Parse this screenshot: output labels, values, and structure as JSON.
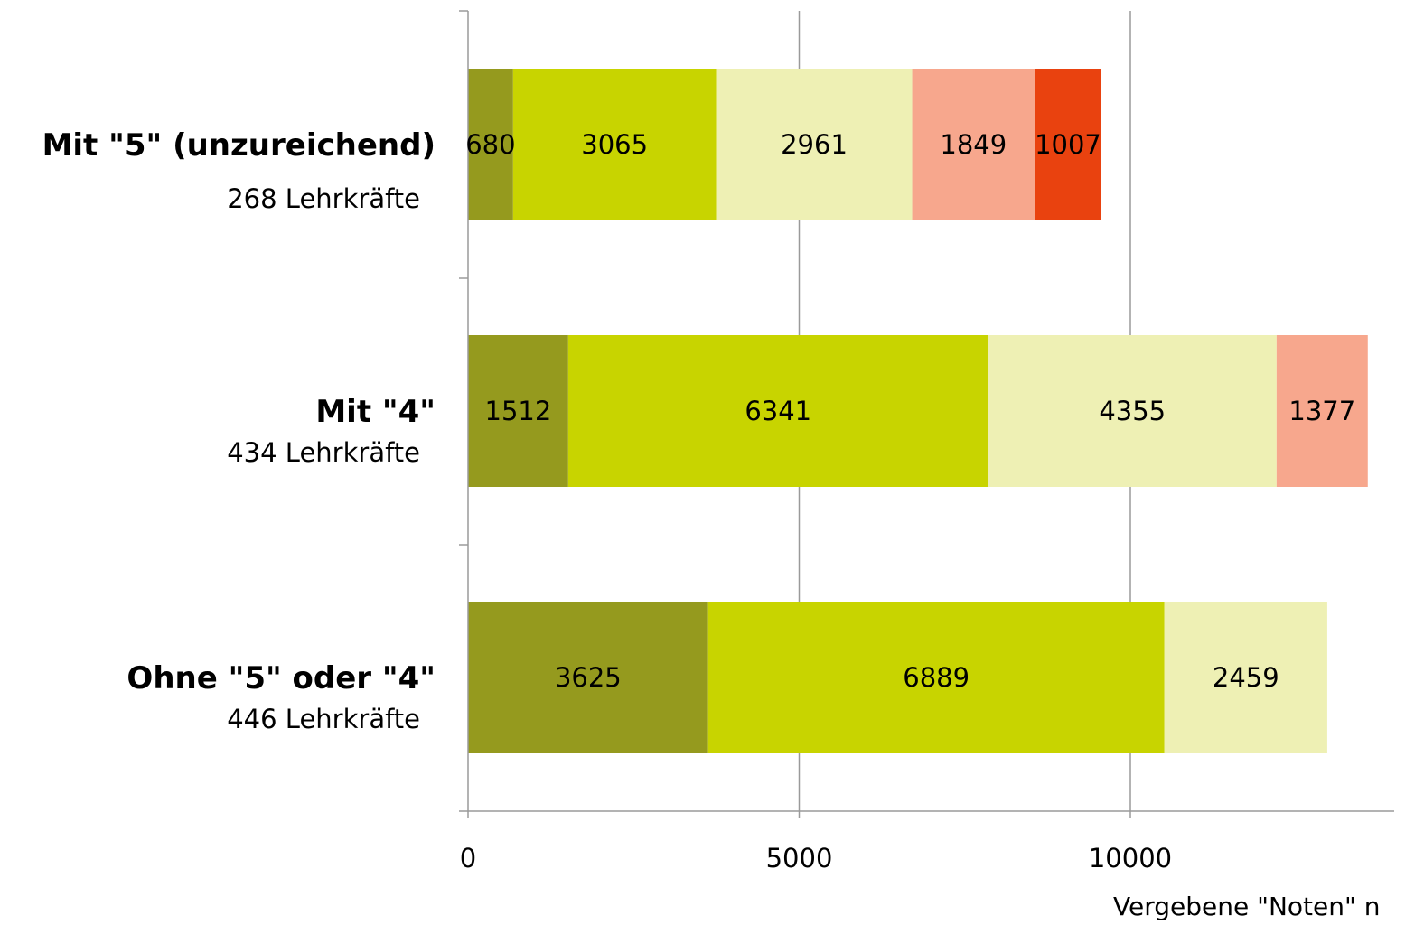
{
  "chart_data": {
    "type": "bar",
    "orientation": "horizontal",
    "stacked": true,
    "categories": [
      {
        "label": "Mit \"5\" (unzureichend)",
        "sublabel": "268 Lehrkräfte"
      },
      {
        "label": "Mit \"4\"",
        "sublabel": "434 Lehrkräfte"
      },
      {
        "label": "Ohne \"5\" oder \"4\"",
        "sublabel": "446 Lehrkräfte"
      }
    ],
    "series": [
      {
        "color": "#959a1e",
        "values": [
          680,
          1512,
          3625
        ]
      },
      {
        "color": "#c8d400",
        "values": [
          3065,
          6341,
          6889
        ]
      },
      {
        "color": "#eef0b4",
        "values": [
          2961,
          4355,
          2459
        ]
      },
      {
        "color": "#f7a78d",
        "values": [
          1849,
          1377,
          0
        ]
      },
      {
        "color": "#e9420f",
        "values": [
          1007,
          0,
          0
        ]
      }
    ],
    "xlim": [
      0,
      14000
    ],
    "xticks": [
      "0",
      "5000",
      "10000"
    ],
    "xlabel": "Vergebene \"Noten\" n",
    "grid": "vertical",
    "legend": "none"
  }
}
